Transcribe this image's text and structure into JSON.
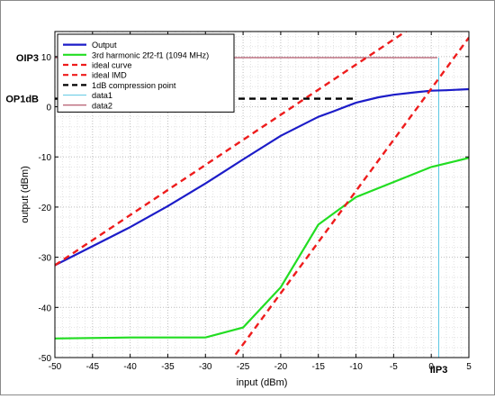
{
  "chart_data": {
    "type": "line",
    "xlabel": "input (dBm)",
    "ylabel": "output (dBm)",
    "xlim": [
      -50,
      5
    ],
    "ylim": [
      -50,
      15
    ],
    "grid": true,
    "minor_grid": true,
    "legend_position": "top-left",
    "x_ticks": [
      -50,
      -45,
      -40,
      -35,
      -30,
      -25,
      -20,
      -15,
      -10,
      -5,
      0,
      5
    ],
    "y_ticks": [
      -50,
      -40,
      -30,
      -20,
      -10,
      0,
      10
    ],
    "series": [
      {
        "name": "Output",
        "color": "#1c1cc8",
        "style": "solid",
        "x": [
          -50,
          -45,
          -40,
          -35,
          -30,
          -25,
          -20,
          -15,
          -13,
          -10,
          -7,
          -5,
          -2,
          0,
          2,
          5
        ],
        "y": [
          -31.6,
          -27.8,
          -24.0,
          -19.8,
          -15.3,
          -10.5,
          -5.8,
          -2.0,
          -0.9,
          0.8,
          1.9,
          2.4,
          2.9,
          3.2,
          3.3,
          3.5
        ]
      },
      {
        "name": "3rd harmonic  2f2-f1 (1094 MHz)",
        "color": "#22dd22",
        "style": "solid",
        "x": [
          -50,
          -40,
          -30,
          -25,
          -20,
          -15,
          -10,
          -5,
          0,
          5
        ],
        "y": [
          -46.2,
          -46.0,
          -46.0,
          -44.0,
          -36.0,
          -23.5,
          -18.0,
          -15.0,
          -12.0,
          -10.2
        ]
      },
      {
        "name": "ideal curve",
        "color": "#ee1c1c",
        "style": "dashed",
        "x": [
          -50,
          5
        ],
        "y": [
          -31.6,
          23.4
        ]
      },
      {
        "name": "ideal IMD",
        "color": "#ee1c1c",
        "style": "dashed",
        "x": [
          -26,
          5
        ],
        "y": [
          -49.4,
          13.8
        ]
      },
      {
        "name": "1dB compression point",
        "color": "#000000",
        "style": "dashed",
        "x": [
          -50,
          -10
        ],
        "y": [
          1.6,
          1.6
        ]
      },
      {
        "name": "data1",
        "color": "#5bc7e3",
        "style": "solid",
        "x": [
          1,
          1
        ],
        "y": [
          -50,
          9.8
        ]
      },
      {
        "name": "data2",
        "color": "#a2324a",
        "style": "solid",
        "x": [
          -50,
          0.8
        ],
        "y": [
          9.8,
          9.8
        ]
      }
    ],
    "annotations": [
      {
        "text": "OIP3",
        "y": 9.8
      },
      {
        "text": "OP1dB",
        "y": 1.6
      },
      {
        "text": "IIP3",
        "x": 1
      }
    ]
  }
}
